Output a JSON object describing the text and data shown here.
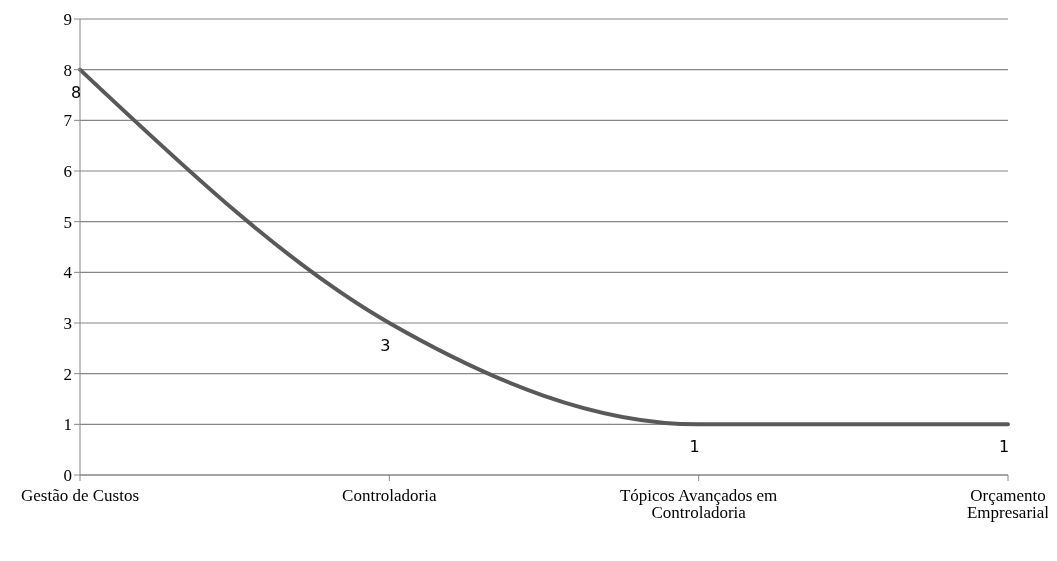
{
  "chart_data": {
    "type": "line",
    "categories": [
      "Gestão de Custos",
      "Controladoria",
      "Tópicos Avançados em Controladoria",
      "Orçamento Empresarial"
    ],
    "series": [
      {
        "color": "#595959",
        "values": [
          8,
          3,
          1,
          1
        ]
      }
    ],
    "ylim": [
      0,
      9
    ],
    "yticks": [
      0,
      1,
      2,
      3,
      4,
      5,
      6,
      7,
      8,
      9
    ],
    "grid": "y",
    "marker": "none",
    "line_style": "solid",
    "data_labels": true
  }
}
